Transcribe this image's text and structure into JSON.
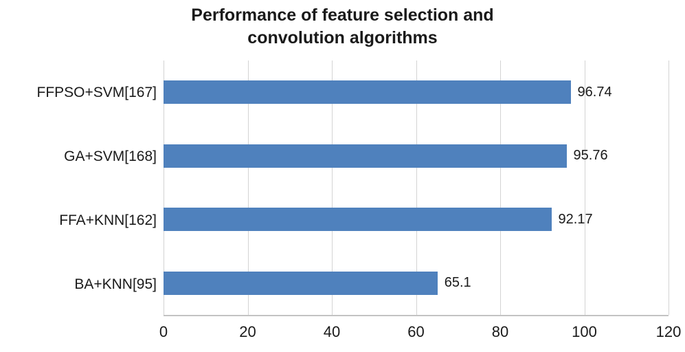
{
  "title": {
    "full": "Performance of feature selection and convolution algorithms",
    "line1": "Performance of feature selection and",
    "line2": "convolution algorithms"
  },
  "chart_data": {
    "type": "bar",
    "orientation": "horizontal",
    "title": "Performance of feature selection and convolution algorithms",
    "categories": [
      "FFPSO+SVM[167]",
      "GA+SVM[168]",
      "FFA+KNN[162]",
      "BA+KNN[95]"
    ],
    "values": [
      96.74,
      95.76,
      92.17,
      65.1
    ],
    "data_labels": [
      "96.74",
      "95.76",
      "92.17",
      "65.1"
    ],
    "xlabel": "",
    "ylabel": "",
    "xlim": [
      0,
      120
    ],
    "xticks": [
      0,
      20,
      40,
      60,
      80,
      100,
      120
    ],
    "grid": "vertical",
    "legend": "none",
    "bar_color": "#4f81bd",
    "gridline_color": "#d3d3d3"
  }
}
